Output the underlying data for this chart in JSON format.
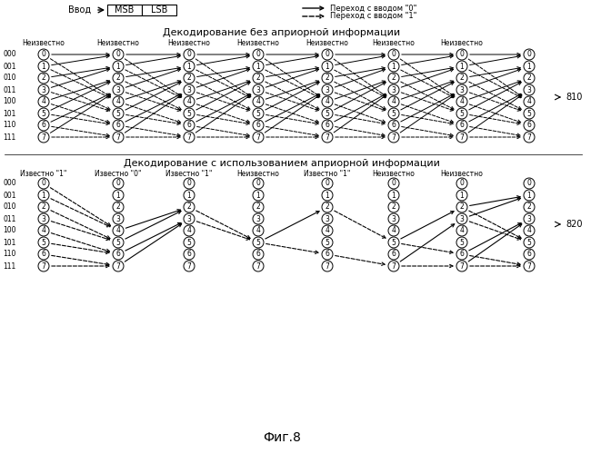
{
  "title_top": "Декодирование без априорной информации",
  "title_bot": "Декодирование с использованием априорной информации",
  "fig_label": "Фиг.8",
  "legend_solid": "Переход с вводом \"0\"",
  "legend_dash": "Переход с вводом \"1\"",
  "header_msb": "MSB",
  "header_lsb": "LSB",
  "header_input": "Ввод",
  "state_labels": [
    "0",
    "1",
    "2",
    "3",
    "4",
    "5",
    "6",
    "7"
  ],
  "state_binary": [
    "000",
    "001",
    "010",
    "011",
    "100",
    "101",
    "110",
    "111"
  ],
  "top_cols": [
    "Неизвестно",
    "Неизвестно",
    "Неизвестно",
    "Неизвестно",
    "Неизвестно",
    "Неизвестно",
    "Неизвестно"
  ],
  "bot_cols_labeled": [
    "Известно \"1\"",
    "Известно \"0\"",
    "Известно \"1\"",
    "Неизвестно",
    "Известно \"1\"",
    "Неизвестно"
  ],
  "label_810": "810",
  "label_820": "820",
  "bg_color": "#ffffff"
}
